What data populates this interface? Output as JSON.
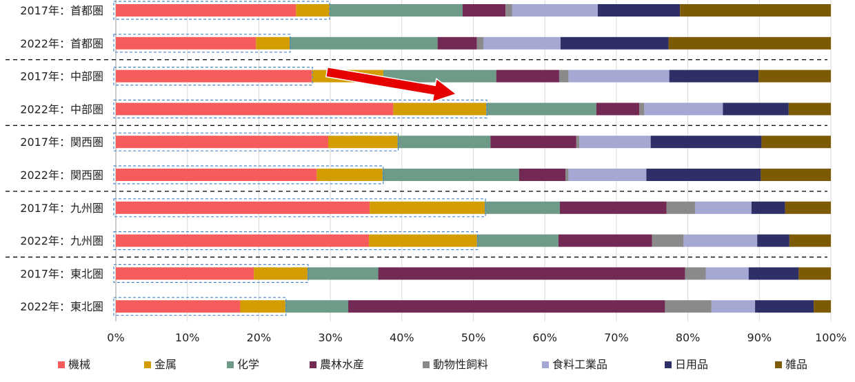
{
  "chart_data": {
    "type": "bar",
    "orientation": "horizontal",
    "stacked": "percent",
    "categories": [
      "2017年：首都圏",
      "2022年：首都圏",
      "2017年：中部圏",
      "2022年：中部圏",
      "2017年：関西圏",
      "2022年：関西圏",
      "2017年：九州圏",
      "2022年：九州圏",
      "2017年：東北圏",
      "2022年：東北圏"
    ],
    "xlim": [
      0,
      100
    ],
    "xticks": [
      "0%",
      "10%",
      "20%",
      "30%",
      "40%",
      "50%",
      "60%",
      "70%",
      "80%",
      "90%",
      "100%"
    ],
    "grid": true,
    "legend_position": "bottom",
    "series": [
      {
        "name": "機械",
        "color": "#F75C5C",
        "values": [
          25.2,
          19.6,
          27.4,
          38.8,
          29.7,
          28.1,
          35.5,
          35.4,
          19.3,
          17.4
        ]
      },
      {
        "name": "金属",
        "color": "#D39C00",
        "values": [
          4.7,
          4.7,
          10.0,
          13.0,
          9.7,
          9.2,
          16.1,
          15.1,
          7.5,
          6.3
        ]
      },
      {
        "name": "化学",
        "color": "#6E9A88",
        "values": [
          18.6,
          20.7,
          15.8,
          15.4,
          13.0,
          19.1,
          10.5,
          11.4,
          9.9,
          8.8
        ]
      },
      {
        "name": "農林水産",
        "color": "#722A55",
        "values": [
          6.0,
          5.5,
          8.8,
          6.0,
          12.0,
          6.5,
          14.9,
          13.1,
          42.9,
          44.3
        ]
      },
      {
        "name": "動物性飼料",
        "color": "#8A8A8A",
        "values": [
          0.9,
          0.9,
          1.3,
          0.7,
          0.4,
          0.4,
          4.0,
          4.4,
          2.9,
          6.5
        ]
      },
      {
        "name": "食料工業品",
        "color": "#A6A8D4",
        "values": [
          12.0,
          10.8,
          14.1,
          11.0,
          10.0,
          10.9,
          7.9,
          10.3,
          6.0,
          6.1
        ]
      },
      {
        "name": "日用品",
        "color": "#2E2F66",
        "values": [
          11.5,
          15.1,
          12.5,
          9.2,
          15.5,
          16.0,
          4.7,
          4.5,
          7.0,
          8.2
        ]
      },
      {
        "name": "雑品",
        "color": "#7D5A06",
        "values": [
          21.1,
          22.7,
          10.1,
          5.9,
          9.7,
          9.8,
          6.4,
          5.8,
          4.5,
          2.4
        ]
      }
    ],
    "highlight_boxes": [
      29.8,
      24.3,
      27.4,
      51.8,
      39.4,
      37.3,
      51.6,
      50.5,
      26.8,
      23.7
    ],
    "arrow": {
      "from": [
        29.5,
        2
      ],
      "to": [
        47.6,
        2.5
      ]
    }
  }
}
